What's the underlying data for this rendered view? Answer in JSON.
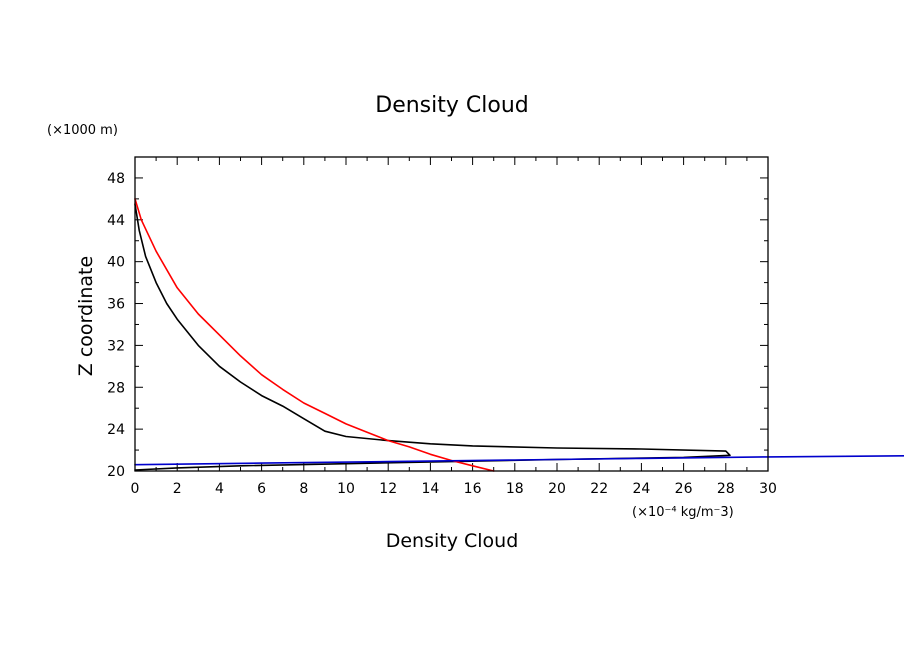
{
  "chart_data": {
    "type": "line",
    "title": "Density Cloud",
    "xlabel": "Density Cloud",
    "ylabel": "Z coordinate",
    "x_unit": "(×10⁻⁴ kg/m⁻3)",
    "y_unit": "(×1000 m)",
    "xlim": [
      0,
      30
    ],
    "ylim": [
      20,
      50
    ],
    "x_ticks": [
      0,
      2,
      4,
      6,
      8,
      10,
      12,
      14,
      16,
      18,
      20,
      22,
      24,
      26,
      28,
      30
    ],
    "y_ticks": [
      20,
      24,
      28,
      32,
      36,
      40,
      44,
      48
    ],
    "x_tick_labels": [
      "0",
      "2",
      "4",
      "6",
      "8",
      "10",
      "12",
      "14",
      "16",
      "18",
      "20",
      "22",
      "24",
      "26",
      "28",
      "30"
    ],
    "y_tick_labels": [
      "20",
      "24",
      "28",
      "32",
      "36",
      "40",
      "44",
      "48"
    ],
    "grid": false,
    "series": [
      {
        "color": "#000000",
        "points": [
          [
            0,
            45.5
          ],
          [
            0.2,
            43
          ],
          [
            0.5,
            40.5
          ],
          [
            1,
            38
          ],
          [
            1.5,
            36
          ],
          [
            2,
            34.5
          ],
          [
            3,
            32
          ],
          [
            4,
            30
          ],
          [
            5,
            28.5
          ],
          [
            6,
            27.2
          ],
          [
            7,
            26.2
          ],
          [
            8,
            25
          ],
          [
            9,
            23.8
          ],
          [
            10,
            23.3
          ],
          [
            12,
            22.9
          ],
          [
            14,
            22.6
          ],
          [
            16,
            22.4
          ],
          [
            20,
            22.2
          ],
          [
            24,
            22.1
          ],
          [
            28,
            21.9
          ],
          [
            28.2,
            21.5
          ],
          [
            26,
            21.3
          ],
          [
            20,
            21.1
          ],
          [
            10,
            20.7
          ],
          [
            5,
            20.5
          ],
          [
            2,
            20.3
          ],
          [
            0,
            20.1
          ]
        ]
      },
      {
        "color": "#ff0000",
        "points": [
          [
            0,
            46
          ],
          [
            0.3,
            44
          ],
          [
            1,
            41
          ],
          [
            2,
            37.5
          ],
          [
            3,
            35
          ],
          [
            4,
            33
          ],
          [
            5,
            31
          ],
          [
            6,
            29.2
          ],
          [
            7,
            27.8
          ],
          [
            8,
            26.5
          ],
          [
            9,
            25.5
          ],
          [
            10,
            24.5
          ],
          [
            11,
            23.7
          ],
          [
            12,
            22.9
          ],
          [
            13,
            22.3
          ],
          [
            14,
            21.6
          ],
          [
            15,
            21
          ],
          [
            16,
            20.5
          ],
          [
            17,
            20
          ]
        ]
      },
      {
        "color": "#0000cc",
        "points": [
          [
            0,
            20.6
          ],
          [
            6,
            20.75
          ],
          [
            12,
            20.9
          ],
          [
            18,
            21.05
          ],
          [
            24,
            21.2
          ],
          [
            30,
            21.35
          ],
          [
            36.6,
            21.45
          ]
        ]
      }
    ]
  }
}
